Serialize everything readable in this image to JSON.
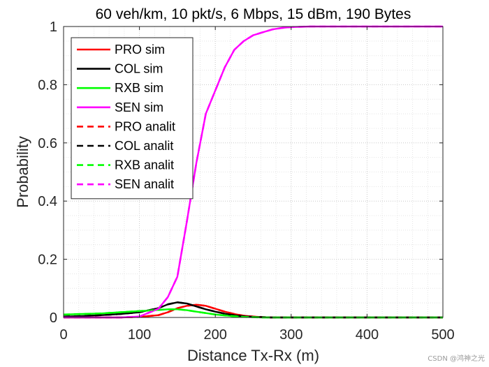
{
  "chart_data": {
    "type": "line",
    "title": "60 veh/km, 10 pkt/s, 6 Mbps, 15 dBm, 190 Bytes",
    "xlabel": "Distance Tx-Rx (m)",
    "ylabel": "Probability",
    "xlim": [
      0,
      500
    ],
    "ylim": [
      0,
      1
    ],
    "xticks": [
      0,
      100,
      200,
      300,
      400,
      500
    ],
    "yticks": [
      0,
      0.2,
      0.4,
      0.6,
      0.8,
      1
    ],
    "grid": "major and minor, dotted",
    "legend_position": "top-left",
    "x": [
      0,
      25,
      50,
      75,
      100,
      125,
      137.5,
      150,
      162.5,
      175,
      187.5,
      200,
      212.5,
      225,
      237.5,
      250,
      262.5,
      275,
      287.5,
      300,
      325,
      350,
      375,
      400,
      450,
      500
    ],
    "series": [
      {
        "name": "PRO sim",
        "color": "#ff0000",
        "style": "solid",
        "values": [
          0,
          0,
          0,
          0,
          0.002,
          0.008,
          0.018,
          0.032,
          0.04,
          0.044,
          0.04,
          0.03,
          0.02,
          0.012,
          0.006,
          0.003,
          0.001,
          0,
          0,
          0,
          0,
          0,
          0,
          0,
          0,
          0
        ]
      },
      {
        "name": "COL sim",
        "color": "#000000",
        "style": "solid",
        "values": [
          0.003,
          0.005,
          0.008,
          0.012,
          0.018,
          0.032,
          0.045,
          0.052,
          0.048,
          0.038,
          0.028,
          0.02,
          0.013,
          0.008,
          0.004,
          0.002,
          0.001,
          0,
          0,
          0,
          0,
          0,
          0,
          0,
          0,
          0
        ]
      },
      {
        "name": "RXB sim",
        "color": "#00ff00",
        "style": "solid",
        "values": [
          0.01,
          0.012,
          0.014,
          0.018,
          0.022,
          0.026,
          0.028,
          0.028,
          0.025,
          0.02,
          0.015,
          0.01,
          0.007,
          0.004,
          0.002,
          0.001,
          0,
          0,
          0,
          0,
          0,
          0,
          0,
          0,
          0,
          0
        ]
      },
      {
        "name": "SEN sim",
        "color": "#ff00ff",
        "style": "solid",
        "values": [
          0,
          0,
          0,
          0,
          0.003,
          0.03,
          0.07,
          0.14,
          0.33,
          0.53,
          0.7,
          0.78,
          0.86,
          0.92,
          0.95,
          0.97,
          0.98,
          0.99,
          0.995,
          0.998,
          1,
          1,
          1,
          1,
          1,
          1
        ]
      },
      {
        "name": "PRO analit",
        "color": "#ff0000",
        "style": "dashed",
        "values": [
          0,
          0,
          0,
          0,
          0.002,
          0.008,
          0.018,
          0.032,
          0.04,
          0.044,
          0.04,
          0.03,
          0.02,
          0.012,
          0.006,
          0.003,
          0.001,
          0,
          0,
          0,
          0,
          0,
          0,
          0,
          0,
          0
        ]
      },
      {
        "name": "COL analit",
        "color": "#000000",
        "style": "dashed",
        "values": [
          0.003,
          0.005,
          0.008,
          0.012,
          0.018,
          0.032,
          0.045,
          0.052,
          0.048,
          0.038,
          0.028,
          0.02,
          0.013,
          0.008,
          0.004,
          0.002,
          0.001,
          0,
          0,
          0,
          0,
          0,
          0,
          0,
          0,
          0
        ]
      },
      {
        "name": "RXB analit",
        "color": "#00ff00",
        "style": "dashed",
        "values": [
          0.01,
          0.012,
          0.014,
          0.018,
          0.022,
          0.026,
          0.028,
          0.028,
          0.025,
          0.02,
          0.015,
          0.01,
          0.007,
          0.004,
          0.002,
          0.001,
          0,
          0,
          0,
          0,
          0,
          0,
          0,
          0,
          0,
          0
        ]
      },
      {
        "name": "SEN analit",
        "color": "#ff00ff",
        "style": "dashed",
        "values": [
          0,
          0,
          0,
          0,
          0.003,
          0.03,
          0.07,
          0.14,
          0.33,
          0.53,
          0.7,
          0.78,
          0.86,
          0.92,
          0.95,
          0.97,
          0.98,
          0.99,
          0.995,
          0.998,
          1,
          1,
          1,
          1,
          1,
          1
        ]
      }
    ]
  },
  "watermark": "CSDN @鸿神之光"
}
